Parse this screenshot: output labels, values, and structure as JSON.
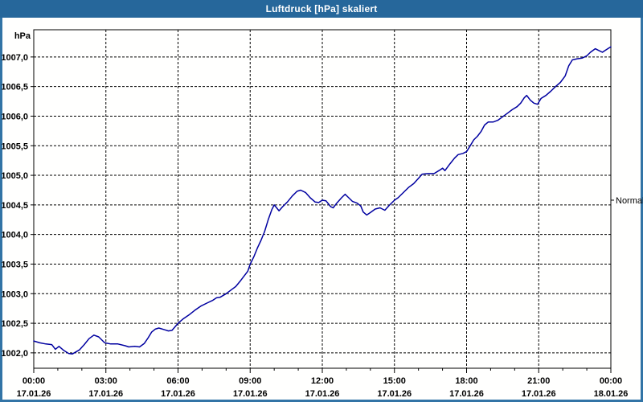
{
  "window": {
    "title": "Luftdruck [hPa] skaliert"
  },
  "colors": {
    "title_bar": "#26679b",
    "window_border": "#3274a6",
    "plot_background": "#ffffff",
    "grid": "#000000",
    "axis": "#000000",
    "series_line": "#0000a0",
    "title_text": "#ffffff",
    "label_text": "#000000"
  },
  "chart_data": {
    "type": "line",
    "title": "Luftdruck [hPa] skaliert",
    "grid": "dashed",
    "legend_position": "right-annotation",
    "y_axis": {
      "unit": "hPa",
      "min": 1001.74,
      "max": 1007.46,
      "tick_step": 0.5,
      "ticks": [
        {
          "label": "1007,0",
          "value": 1007.0
        },
        {
          "label": "1006,5",
          "value": 1006.5
        },
        {
          "label": "1006,0",
          "value": 1006.0
        },
        {
          "label": "1005,5",
          "value": 1005.5
        },
        {
          "label": "1005,0",
          "value": 1005.0
        },
        {
          "label": "1004,5",
          "value": 1004.5
        },
        {
          "label": "1004,0",
          "value": 1004.0
        },
        {
          "label": "1003,5",
          "value": 1003.5
        },
        {
          "label": "1003,0",
          "value": 1003.0
        },
        {
          "label": "1002,5",
          "value": 1002.5
        },
        {
          "label": "1002,0",
          "value": 1002.0
        }
      ]
    },
    "x_axis": {
      "hours_span": 24,
      "minor_tick_hours": 1,
      "major_tick_hours": 3,
      "ticks": [
        {
          "hour": 0,
          "time": "00:00",
          "date": "17.01.26"
        },
        {
          "hour": 3,
          "time": "03:00",
          "date": "17.01.26"
        },
        {
          "hour": 6,
          "time": "06:00",
          "date": "17.01.26"
        },
        {
          "hour": 9,
          "time": "09:00",
          "date": "17.01.26"
        },
        {
          "hour": 12,
          "time": "12:00",
          "date": "17.01.26"
        },
        {
          "hour": 15,
          "time": "15:00",
          "date": "17.01.26"
        },
        {
          "hour": 18,
          "time": "18:00",
          "date": "17.01.26"
        },
        {
          "hour": 21,
          "time": "21:00",
          "date": "17.01.26"
        },
        {
          "hour": 24,
          "time": "00:00",
          "date": "18.01.26"
        }
      ]
    },
    "annotations": [
      {
        "label": "Normal",
        "value": 1004.58,
        "side": "right"
      }
    ],
    "series": [
      {
        "name": "Luftdruck",
        "color": "#0000a0",
        "points": [
          [
            0.0,
            1002.2
          ],
          [
            0.25,
            1002.17
          ],
          [
            0.5,
            1002.15
          ],
          [
            0.75,
            1002.14
          ],
          [
            0.9,
            1002.06
          ],
          [
            1.05,
            1002.11
          ],
          [
            1.25,
            1002.04
          ],
          [
            1.45,
            1001.99
          ],
          [
            1.6,
            1001.98
          ],
          [
            1.9,
            1002.05
          ],
          [
            2.1,
            1002.14
          ],
          [
            2.3,
            1002.24
          ],
          [
            2.5,
            1002.3
          ],
          [
            2.7,
            1002.27
          ],
          [
            2.95,
            1002.17
          ],
          [
            3.2,
            1002.15
          ],
          [
            3.5,
            1002.15
          ],
          [
            3.8,
            1002.12
          ],
          [
            3.95,
            1002.1
          ],
          [
            4.2,
            1002.11
          ],
          [
            4.4,
            1002.1
          ],
          [
            4.6,
            1002.16
          ],
          [
            4.75,
            1002.25
          ],
          [
            4.9,
            1002.35
          ],
          [
            5.05,
            1002.4
          ],
          [
            5.2,
            1002.42
          ],
          [
            5.45,
            1002.39
          ],
          [
            5.6,
            1002.37
          ],
          [
            5.75,
            1002.38
          ],
          [
            6.0,
            1002.5
          ],
          [
            6.2,
            1002.57
          ],
          [
            6.45,
            1002.64
          ],
          [
            6.7,
            1002.72
          ],
          [
            6.95,
            1002.79
          ],
          [
            7.2,
            1002.84
          ],
          [
            7.45,
            1002.89
          ],
          [
            7.6,
            1002.93
          ],
          [
            7.75,
            1002.94
          ],
          [
            8.0,
            1003.0
          ],
          [
            8.2,
            1003.06
          ],
          [
            8.4,
            1003.12
          ],
          [
            8.6,
            1003.22
          ],
          [
            8.75,
            1003.3
          ],
          [
            8.9,
            1003.38
          ],
          [
            9.0,
            1003.5
          ],
          [
            9.15,
            1003.62
          ],
          [
            9.3,
            1003.77
          ],
          [
            9.45,
            1003.9
          ],
          [
            9.6,
            1004.05
          ],
          [
            9.75,
            1004.25
          ],
          [
            9.9,
            1004.42
          ],
          [
            10.0,
            1004.5
          ],
          [
            10.1,
            1004.45
          ],
          [
            10.2,
            1004.4
          ],
          [
            10.35,
            1004.47
          ],
          [
            10.55,
            1004.55
          ],
          [
            10.75,
            1004.65
          ],
          [
            10.95,
            1004.73
          ],
          [
            11.1,
            1004.75
          ],
          [
            11.3,
            1004.71
          ],
          [
            11.5,
            1004.62
          ],
          [
            11.7,
            1004.55
          ],
          [
            11.85,
            1004.54
          ],
          [
            12.0,
            1004.58
          ],
          [
            12.15,
            1004.57
          ],
          [
            12.35,
            1004.47
          ],
          [
            12.45,
            1004.45
          ],
          [
            12.6,
            1004.53
          ],
          [
            12.8,
            1004.62
          ],
          [
            12.95,
            1004.68
          ],
          [
            13.1,
            1004.62
          ],
          [
            13.25,
            1004.56
          ],
          [
            13.45,
            1004.53
          ],
          [
            13.6,
            1004.48
          ],
          [
            13.7,
            1004.38
          ],
          [
            13.85,
            1004.33
          ],
          [
            14.0,
            1004.37
          ],
          [
            14.2,
            1004.43
          ],
          [
            14.4,
            1004.45
          ],
          [
            14.6,
            1004.41
          ],
          [
            14.8,
            1004.5
          ],
          [
            15.0,
            1004.58
          ],
          [
            15.15,
            1004.62
          ],
          [
            15.35,
            1004.7
          ],
          [
            15.6,
            1004.8
          ],
          [
            15.8,
            1004.86
          ],
          [
            16.0,
            1004.95
          ],
          [
            16.15,
            1005.02
          ],
          [
            16.4,
            1005.03
          ],
          [
            16.65,
            1005.03
          ],
          [
            16.85,
            1005.08
          ],
          [
            17.0,
            1005.12
          ],
          [
            17.1,
            1005.08
          ],
          [
            17.3,
            1005.19
          ],
          [
            17.5,
            1005.29
          ],
          [
            17.65,
            1005.35
          ],
          [
            17.85,
            1005.37
          ],
          [
            18.0,
            1005.4
          ],
          [
            18.15,
            1005.5
          ],
          [
            18.3,
            1005.6
          ],
          [
            18.45,
            1005.66
          ],
          [
            18.6,
            1005.74
          ],
          [
            18.75,
            1005.85
          ],
          [
            18.9,
            1005.9
          ],
          [
            19.1,
            1005.9
          ],
          [
            19.3,
            1005.93
          ],
          [
            19.5,
            1005.99
          ],
          [
            19.7,
            1006.05
          ],
          [
            19.9,
            1006.11
          ],
          [
            20.1,
            1006.16
          ],
          [
            20.25,
            1006.22
          ],
          [
            20.4,
            1006.31
          ],
          [
            20.5,
            1006.35
          ],
          [
            20.65,
            1006.27
          ],
          [
            20.8,
            1006.22
          ],
          [
            20.95,
            1006.2
          ],
          [
            21.1,
            1006.3
          ],
          [
            21.3,
            1006.35
          ],
          [
            21.5,
            1006.42
          ],
          [
            21.7,
            1006.5
          ],
          [
            21.9,
            1006.57
          ],
          [
            22.1,
            1006.68
          ],
          [
            22.25,
            1006.85
          ],
          [
            22.4,
            1006.95
          ],
          [
            22.6,
            1006.97
          ],
          [
            22.8,
            1006.98
          ],
          [
            23.0,
            1007.02
          ],
          [
            23.15,
            1007.08
          ],
          [
            23.35,
            1007.14
          ],
          [
            23.5,
            1007.11
          ],
          [
            23.65,
            1007.08
          ],
          [
            23.8,
            1007.12
          ],
          [
            23.95,
            1007.16
          ],
          [
            24.0,
            1007.17
          ]
        ]
      }
    ]
  }
}
